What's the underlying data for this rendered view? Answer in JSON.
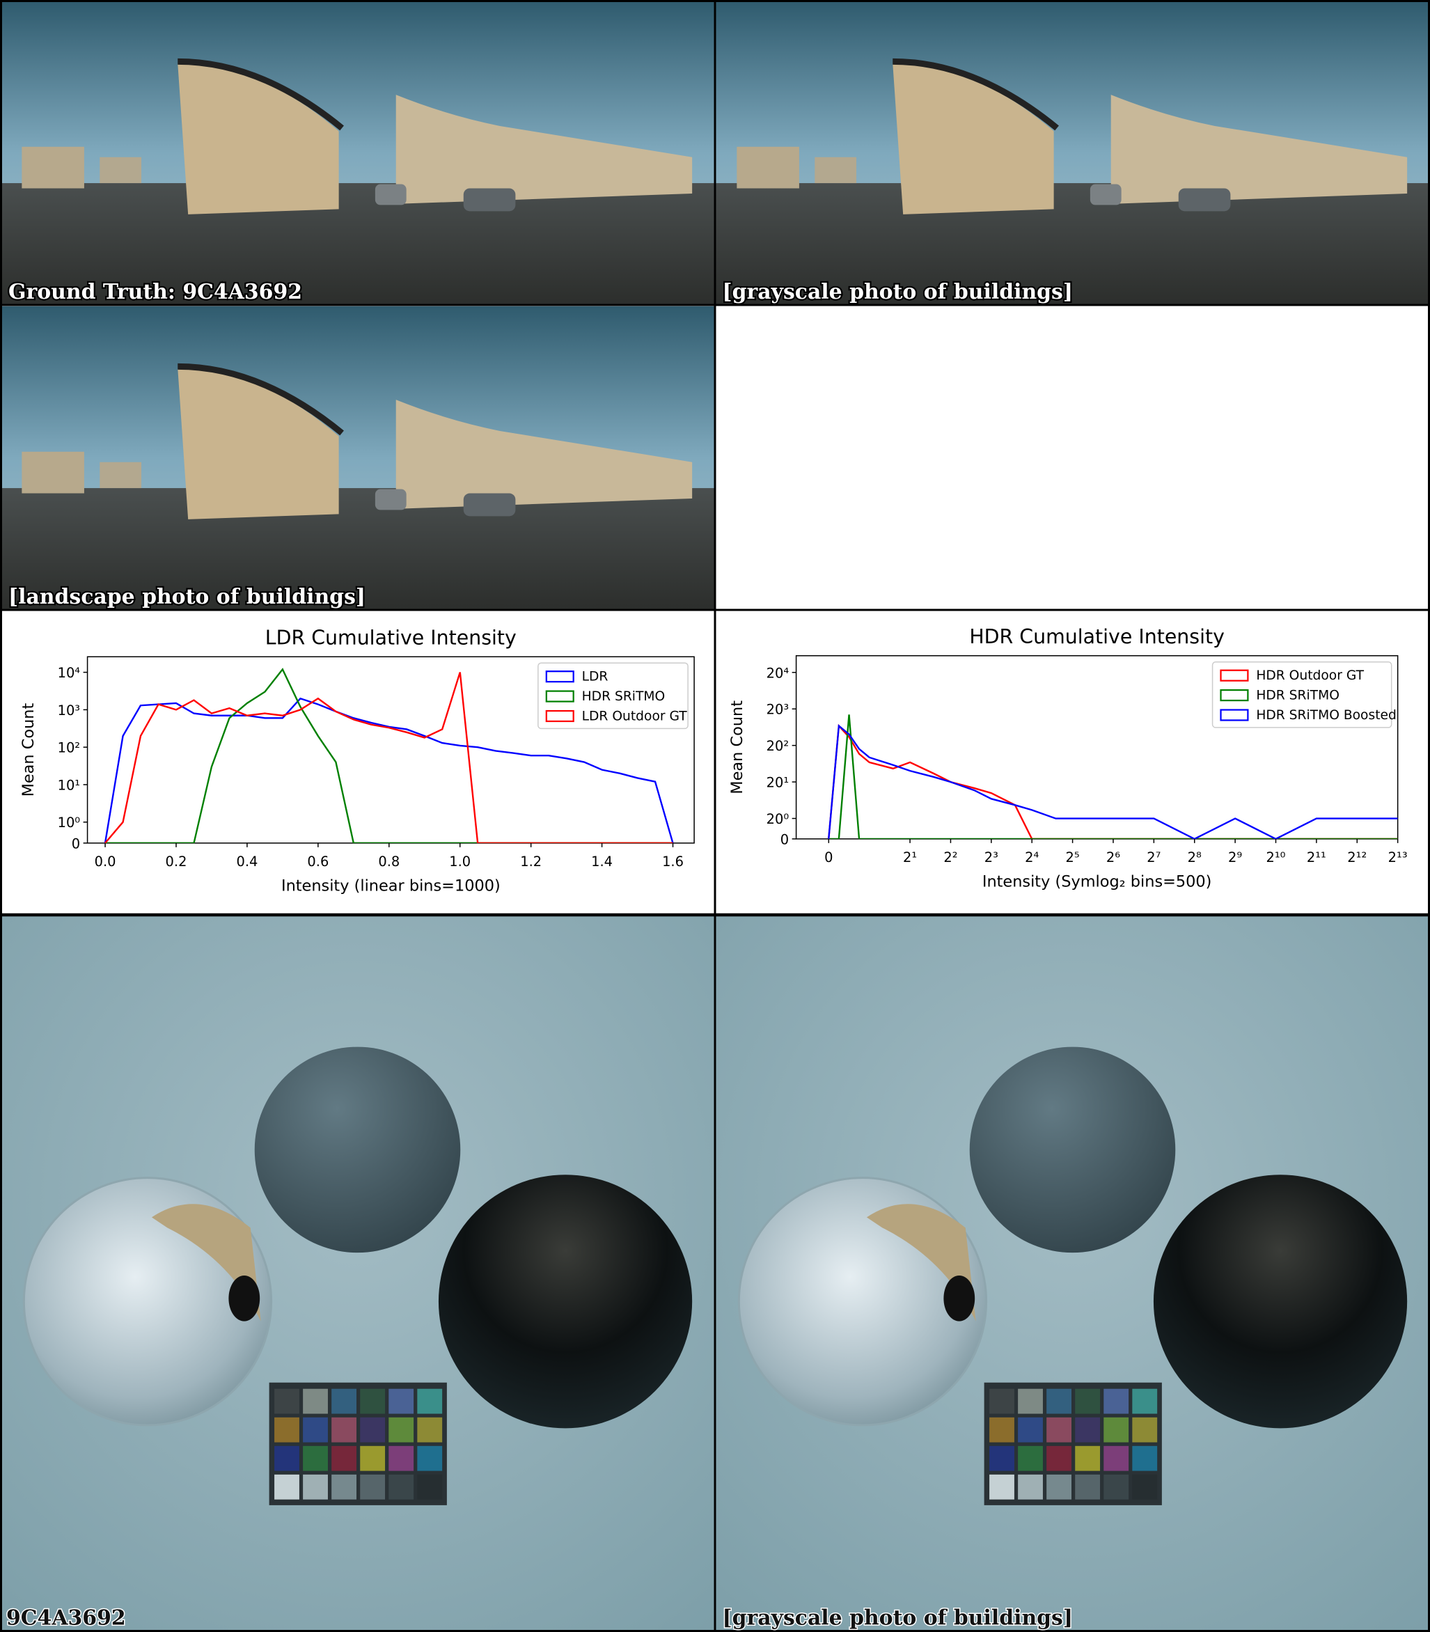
{
  "panels": {
    "ground_truth_label": "Ground Truth: 9C4A3692",
    "top_right_label": "[grayscale photo of buildings]",
    "middle_left_label": "[landscape photo of buildings]",
    "render_left_label": "9C4A3692",
    "render_right_label": "[grayscale photo of buildings]"
  },
  "chart_data": [
    {
      "type": "line",
      "title": "LDR Cumulative Intensity",
      "x_label": "Intensity (linear bins=1000)",
      "y_label": "Mean Count",
      "xscale": "linear",
      "yscale": "symlog",
      "ybase": 10,
      "legend": "upper right",
      "x": [
        0,
        0.05,
        0.1,
        0.15,
        0.2,
        0.25,
        0.3,
        0.35,
        0.4,
        0.45,
        0.5,
        0.55,
        0.6,
        0.65,
        0.7,
        0.75,
        0.8,
        0.85,
        0.9,
        0.95,
        1.0,
        1.05,
        1.1,
        1.15,
        1.2,
        1.25,
        1.3,
        1.35,
        1.4,
        1.45,
        1.5,
        1.55,
        1.6
      ],
      "series": [
        {
          "name": "LDR",
          "color": "#0000ff",
          "values": [
            0,
            200,
            1300,
            1400,
            1500,
            800,
            700,
            700,
            700,
            600,
            600,
            2000,
            1400,
            900,
            600,
            450,
            350,
            300,
            200,
            130,
            110,
            100,
            80,
            70,
            60,
            60,
            50,
            40,
            25,
            20,
            15,
            12,
            0
          ]
        },
        {
          "name": "HDR SRiTMO",
          "color": "#008000",
          "values": [
            0,
            0,
            0,
            0,
            0,
            0,
            30,
            600,
            1500,
            3000,
            12000,
            1200,
            200,
            40,
            0,
            0,
            0,
            0,
            0,
            0,
            0,
            0,
            0,
            0,
            0,
            0,
            0,
            0,
            0,
            0,
            0,
            0,
            0
          ]
        },
        {
          "name": "LDR Outdoor GT",
          "color": "#ff0000",
          "values": [
            0,
            1,
            200,
            1400,
            1000,
            1800,
            800,
            1100,
            700,
            800,
            700,
            1000,
            2000,
            900,
            550,
            400,
            330,
            250,
            180,
            300,
            10000,
            0,
            0,
            0,
            0,
            0,
            0,
            0,
            0,
            0,
            0,
            0,
            0
          ]
        }
      ],
      "xlim": [
        -0.05,
        1.66
      ],
      "ylim": [
        0,
        26000
      ],
      "xticks": [
        {
          "value": 0,
          "label": "0.0"
        },
        0.2,
        0.4,
        0.6,
        0.8,
        {
          "value": 1,
          "label": "1.0"
        },
        1.2,
        1.4,
        1.6
      ],
      "yticks": [
        0,
        {
          "value": 1,
          "label": "10⁰"
        },
        {
          "value": 10,
          "label": "10¹"
        },
        {
          "value": 100,
          "label": "10²"
        },
        {
          "value": 1000,
          "label": "10³"
        },
        {
          "value": 10000,
          "label": "10⁴"
        }
      ]
    },
    {
      "type": "line",
      "title": "HDR Cumulative Intensity",
      "x_label": "Intensity (Symlog₂ bins=500)",
      "y_label": "Mean Count",
      "xscale": "symlog",
      "xbase": 2,
      "yscale": "symlog",
      "ybase": 20,
      "legend": "upper right",
      "x": [
        0,
        0.25,
        0.5,
        0.75,
        1,
        1.5,
        2,
        3,
        4,
        6,
        8,
        12,
        16,
        24,
        32,
        48,
        64,
        128,
        256,
        512,
        1024,
        2048,
        4096,
        8192
      ],
      "series": [
        {
          "name": "HDR Outdoor GT",
          "color": "#ff0000",
          "values": [
            0,
            2000,
            800,
            200,
            100,
            60,
            100,
            40,
            20,
            12,
            8,
            3,
            0,
            0,
            0,
            0,
            0,
            0,
            0,
            0,
            0,
            0,
            0,
            0
          ]
        },
        {
          "name": "HDR SRiTMO",
          "color": "#008000",
          "values": [
            0,
            0,
            5000,
            0,
            0,
            0,
            0,
            0,
            0,
            0,
            0,
            0,
            0,
            0,
            0,
            0,
            0,
            0,
            0,
            0,
            0,
            0,
            0,
            0
          ]
        },
        {
          "name": "HDR SRiTMO Boosted",
          "color": "#0000ff",
          "values": [
            0,
            2000,
            1000,
            300,
            150,
            80,
            50,
            30,
            20,
            10,
            5,
            3,
            2,
            1,
            1,
            1,
            1,
            1,
            0,
            1,
            0,
            1,
            1,
            1
          ]
        }
      ],
      "xlim": [
        -0.8,
        8192
      ],
      "ylim": [
        0,
        630000
      ],
      "xticks": [
        0,
        {
          "value": 2,
          "label": "2¹"
        },
        {
          "value": 4,
          "label": "2²"
        },
        {
          "value": 8,
          "label": "2³"
        },
        {
          "value": 16,
          "label": "2⁴"
        },
        {
          "value": 32,
          "label": "2⁵"
        },
        {
          "value": 64,
          "label": "2⁶"
        },
        {
          "value": 128,
          "label": "2⁷"
        },
        {
          "value": 256,
          "label": "2⁸"
        },
        {
          "value": 512,
          "label": "2⁹"
        },
        {
          "value": 1024,
          "label": "2¹⁰"
        },
        {
          "value": 2048,
          "label": "2¹¹"
        },
        {
          "value": 4096,
          "label": "2¹²"
        },
        {
          "value": 8192,
          "label": "2¹³"
        }
      ],
      "yticks": [
        0,
        {
          "value": 1,
          "label": "20⁰"
        },
        {
          "value": 20,
          "label": "20¹"
        },
        {
          "value": 400,
          "label": "20²"
        },
        {
          "value": 8000,
          "label": "20³"
        },
        {
          "value": 160000,
          "label": "20⁴"
        }
      ]
    }
  ]
}
